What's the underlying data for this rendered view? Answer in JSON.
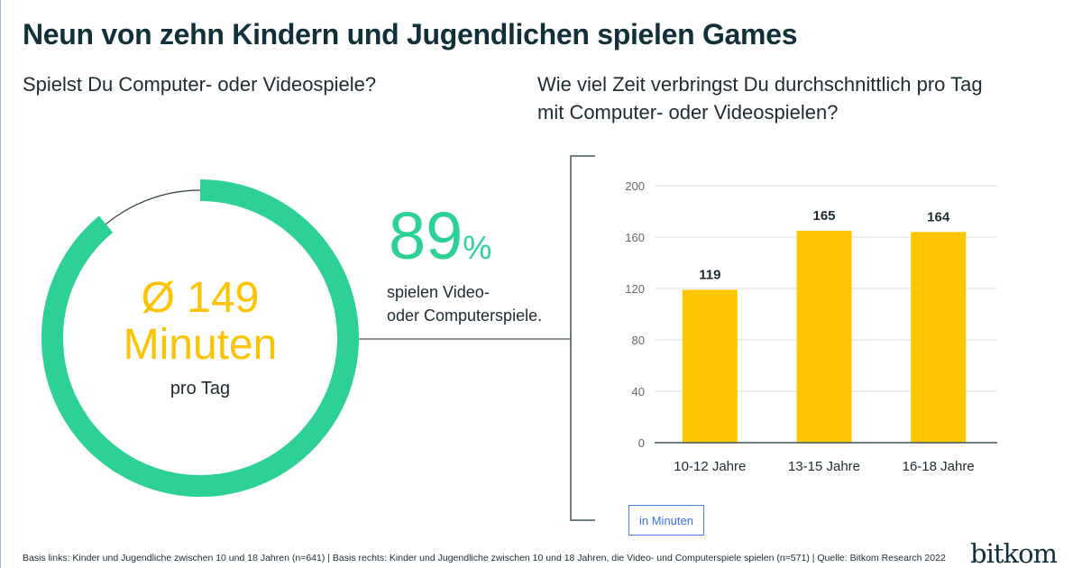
{
  "title": "Neun von zehn Kindern und Jugendlichen spielen Games",
  "left": {
    "question": "Spielst Du Computer- oder Videospiele?",
    "share_percent": 89,
    "share_value": "89",
    "share_sign": "%",
    "share_desc_line1": "spielen Video-",
    "share_desc_line2": "oder Computerspiele.",
    "average_line1": "Ø 149",
    "average_line2": "Minuten",
    "average_line3": "pro Tag",
    "ring_color": "#2dd196",
    "average_color": "#fdc300"
  },
  "right": {
    "question_line1": "Wie viel Zeit verbringst Du durchschnittlich pro Tag",
    "question_line2": "mit Computer- oder Videospielen?",
    "unit_label": "in Minuten"
  },
  "chart_data": {
    "type": "bar",
    "categories": [
      "10-12 Jahre",
      "13-15 Jahre",
      "16-18 Jahre"
    ],
    "values": [
      119,
      165,
      164
    ],
    "data_labels": [
      "119",
      "165",
      "164"
    ],
    "ylim": [
      0,
      200
    ],
    "yticks": [
      0,
      40,
      80,
      120,
      160,
      200
    ],
    "ytick_labels": [
      "0",
      "40",
      "80",
      "120",
      "160",
      "200"
    ],
    "grid": true,
    "bar_color": "#fdc600"
  },
  "footer": "Basis links: Kinder und Jugendliche zwischen 10 und 18 Jahren (n=641) | Basis rechts: Kinder und Jugendliche zwischen 10 und 18 Jahren, die Video- und Computerspiele spielen (n=571) | Quelle: Bitkom Research 2022",
  "logo": "bitkom"
}
